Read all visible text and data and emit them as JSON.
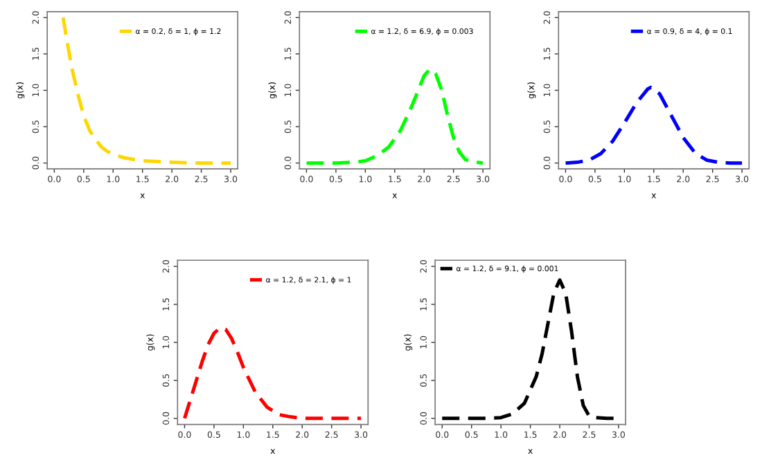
{
  "chart_data": [
    {
      "type": "line",
      "xlabel": "x",
      "ylabel": "g(x)",
      "legend": "top right",
      "line_style": "dashed",
      "xlim": [
        -0.12,
        3.12
      ],
      "ylim": [
        -0.08,
        2.08
      ],
      "xticks": [
        {
          "value": 0,
          "label": "0.0"
        },
        0.5,
        {
          "value": 1,
          "label": "1.0"
        },
        1.5,
        {
          "value": 2,
          "label": "2.0"
        },
        2.5,
        {
          "value": 3,
          "label": "3.0"
        }
      ],
      "yticks": [
        {
          "value": 0,
          "label": "0.0"
        },
        {
          "value": 0.5,
          "label": "0.5"
        },
        {
          "value": 1,
          "label": "1.0"
        },
        {
          "value": 1.5,
          "label": "1.5"
        },
        {
          "value": 2,
          "label": "2.0"
        }
      ],
      "series": [
        {
          "name": "α = 0.2, δ = 1, ϕ = 1.2",
          "color": "#ffd700",
          "x": [
            0.15,
            0.2,
            0.3,
            0.4,
            0.5,
            0.6,
            0.7,
            0.8,
            0.9,
            1.0,
            1.2,
            1.5,
            2.0,
            2.5,
            3.0
          ],
          "values": [
            2.0,
            1.75,
            1.3,
            0.95,
            0.65,
            0.45,
            0.33,
            0.22,
            0.16,
            0.12,
            0.07,
            0.03,
            0.01,
            0,
            0
          ]
        }
      ]
    },
    {
      "type": "line",
      "xlabel": "x",
      "ylabel": "g(x)",
      "legend": "top right",
      "line_style": "dashed",
      "xlim": [
        -0.12,
        3.12
      ],
      "ylim": [
        -0.08,
        2.08
      ],
      "xticks": [
        {
          "value": 0,
          "label": "0.0"
        },
        0.5,
        {
          "value": 1,
          "label": "1.0"
        },
        1.5,
        {
          "value": 2,
          "label": "2.0"
        },
        2.5,
        {
          "value": 3,
          "label": "3.0"
        }
      ],
      "yticks": [
        {
          "value": 0,
          "label": "0.0"
        },
        {
          "value": 0.5,
          "label": "0.5"
        },
        {
          "value": 1,
          "label": "1.0"
        },
        {
          "value": 1.5,
          "label": "1.5"
        },
        {
          "value": 2,
          "label": "2.0"
        }
      ],
      "series": [
        {
          "name": "α = 1.2, δ = 6.9, ϕ = 0.003",
          "color": "#00ff00",
          "x": [
            0,
            0.5,
            0.8,
            1.0,
            1.2,
            1.4,
            1.6,
            1.8,
            1.9,
            2.0,
            2.1,
            2.2,
            2.3,
            2.4,
            2.5,
            2.6,
            2.7,
            2.8,
            3.0
          ],
          "values": [
            0,
            0,
            0.01,
            0.03,
            0.1,
            0.22,
            0.45,
            0.8,
            1.0,
            1.2,
            1.29,
            1.22,
            1.0,
            0.65,
            0.35,
            0.15,
            0.05,
            0.02,
            0
          ]
        }
      ]
    },
    {
      "type": "line",
      "xlabel": "x",
      "ylabel": "g(x)",
      "legend": "top right",
      "line_style": "dashed",
      "xlim": [
        -0.12,
        3.12
      ],
      "ylim": [
        -0.08,
        2.08
      ],
      "xticks": [
        {
          "value": 0,
          "label": "0.0"
        },
        0.5,
        {
          "value": 1,
          "label": "1.0"
        },
        1.5,
        {
          "value": 2,
          "label": "2.0"
        },
        2.5,
        {
          "value": 3,
          "label": "3.0"
        }
      ],
      "yticks": [
        {
          "value": 0,
          "label": "0.0"
        },
        {
          "value": 0.5,
          "label": "0.5"
        },
        {
          "value": 1,
          "label": "1.0"
        },
        {
          "value": 1.5,
          "label": "1.5"
        },
        {
          "value": 2,
          "label": "2.0"
        }
      ],
      "series": [
        {
          "name": "α = 0.9, δ = 4, ϕ = 0.1",
          "color": "#0000ff",
          "x": [
            0,
            0.2,
            0.4,
            0.6,
            0.8,
            1.0,
            1.2,
            1.4,
            1.45,
            1.6,
            1.8,
            2.0,
            2.2,
            2.4,
            2.6,
            2.8,
            3.0
          ],
          "values": [
            0,
            0.01,
            0.04,
            0.13,
            0.3,
            0.55,
            0.82,
            1.02,
            1.04,
            0.95,
            0.65,
            0.35,
            0.14,
            0.04,
            0.01,
            0,
            0
          ]
        }
      ]
    },
    {
      "type": "line",
      "xlabel": "x",
      "ylabel": "g(x)",
      "legend": "top right",
      "line_style": "dashed",
      "xlim": [
        -0.12,
        3.12
      ],
      "ylim": [
        -0.08,
        2.08
      ],
      "xticks": [
        {
          "value": 0,
          "label": "0.0"
        },
        0.5,
        {
          "value": 1,
          "label": "1.0"
        },
        1.5,
        {
          "value": 2,
          "label": "2.0"
        },
        2.5,
        {
          "value": 3,
          "label": "3.0"
        }
      ],
      "yticks": [
        {
          "value": 0,
          "label": "0.0"
        },
        {
          "value": 0.5,
          "label": "0.5"
        },
        {
          "value": 1,
          "label": "1.0"
        },
        {
          "value": 1.5,
          "label": "1.5"
        },
        {
          "value": 2,
          "label": "2.0"
        }
      ],
      "series": [
        {
          "name": "α = 1.2, δ = 2.1, ϕ = 1",
          "color": "#ff0000",
          "x": [
            0,
            0.1,
            0.2,
            0.3,
            0.4,
            0.5,
            0.6,
            0.7,
            0.8,
            0.9,
            1.0,
            1.2,
            1.4,
            1.6,
            1.8,
            2.0,
            2.5,
            3.0
          ],
          "values": [
            0,
            0.25,
            0.5,
            0.75,
            0.97,
            1.12,
            1.19,
            1.17,
            1.05,
            0.87,
            0.67,
            0.35,
            0.15,
            0.05,
            0.02,
            0,
            0,
            0
          ]
        }
      ]
    },
    {
      "type": "line",
      "xlabel": "x",
      "ylabel": "g(x)",
      "legend": "top left",
      "line_style": "dashed",
      "xlim": [
        -0.12,
        3.12
      ],
      "ylim": [
        -0.08,
        2.08
      ],
      "xticks": [
        {
          "value": 0,
          "label": "0.0"
        },
        0.5,
        {
          "value": 1,
          "label": "1.0"
        },
        1.5,
        {
          "value": 2,
          "label": "2.0"
        },
        2.5,
        {
          "value": 3,
          "label": "3.0"
        }
      ],
      "yticks": [
        {
          "value": 0,
          "label": "0.0"
        },
        {
          "value": 0.5,
          "label": "0.5"
        },
        {
          "value": 1,
          "label": "1.0"
        },
        {
          "value": 1.5,
          "label": "1.5"
        },
        {
          "value": 2,
          "label": "2.0"
        }
      ],
      "series": [
        {
          "name": "α = 1.2, δ = 9.1, ϕ = 0.001",
          "color": "#000000",
          "x": [
            0,
            0.8,
            1.0,
            1.2,
            1.4,
            1.6,
            1.7,
            1.8,
            1.9,
            2.0,
            2.1,
            2.2,
            2.3,
            2.4,
            2.5,
            2.6,
            2.8,
            3.0
          ],
          "values": [
            0,
            0,
            0.01,
            0.06,
            0.2,
            0.55,
            0.85,
            1.25,
            1.65,
            1.82,
            1.65,
            1.15,
            0.55,
            0.17,
            0.03,
            0.01,
            0,
            0
          ]
        }
      ]
    }
  ]
}
